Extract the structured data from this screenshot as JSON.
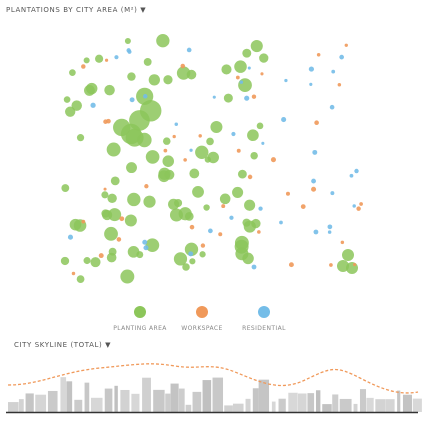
{
  "header": {
    "title": "PLANTATIONS BY CITY AREA (M²) ▼"
  },
  "legend": [
    {
      "label": "PLANTING AREA",
      "color": "#8cc65a"
    },
    {
      "label": "WORKSPACE",
      "color": "#f0995a"
    },
    {
      "label": "RESIDENTIAL",
      "color": "#74bde8"
    }
  ],
  "skyline": {
    "title": "CITY SKYLINE (TOTAL) ▼"
  }
}
